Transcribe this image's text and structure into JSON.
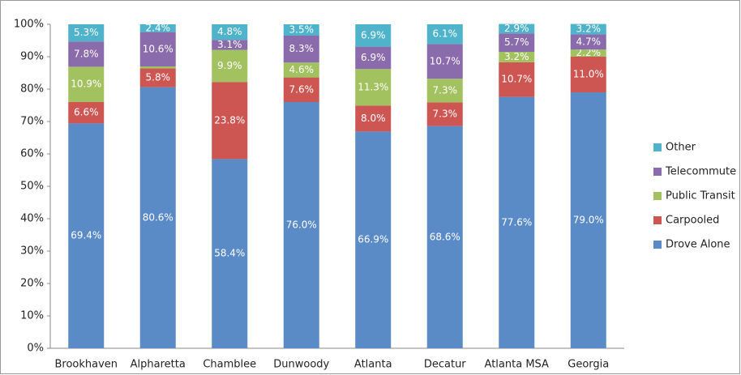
{
  "chart_data": {
    "type": "stacked_bar",
    "categories": [
      "Brookhaven",
      "Alpharetta",
      "Chamblee",
      "Dunwoody",
      "Atlanta",
      "Decatur",
      "Atlanta MSA",
      "Georgia"
    ],
    "series": [
      {
        "name": "Drove Alone",
        "color": "#5b8bc7",
        "values": [
          69.4,
          80.6,
          58.4,
          76.0,
          66.9,
          68.6,
          77.6,
          79.0
        ],
        "value_labels": [
          "69.4%",
          "80.6%",
          "58.4%",
          "76.0%",
          "66.9%",
          "68.6%",
          "77.6%",
          "79.0%"
        ]
      },
      {
        "name": "Carpooled",
        "color": "#cd5653",
        "values": [
          6.6,
          5.8,
          23.8,
          7.6,
          8.0,
          7.3,
          10.7,
          11.0
        ],
        "value_labels": [
          "6.6%",
          "5.8%",
          "23.8%",
          "7.6%",
          "8.0%",
          "7.3%",
          "10.7%",
          "11.0%"
        ]
      },
      {
        "name": "Public Transit",
        "color": "#a2c15f",
        "values": [
          10.9,
          0.6,
          9.9,
          4.6,
          11.3,
          7.3,
          3.2,
          2.2
        ],
        "value_labels": [
          "10.9%",
          null,
          "9.9%",
          "4.6%",
          "11.3%",
          "7.3%",
          "3.2%",
          "2.2%"
        ]
      },
      {
        "name": "Telecommute",
        "color": "#8a6bab",
        "values": [
          7.8,
          10.6,
          3.1,
          8.3,
          6.9,
          10.7,
          5.7,
          4.7
        ],
        "value_labels": [
          "7.8%",
          "10.6%",
          "3.1%",
          "8.3%",
          "6.9%",
          "10.7%",
          "5.7%",
          "4.7%"
        ]
      },
      {
        "name": "Other",
        "color": "#4fb3cc",
        "values": [
          5.3,
          2.4,
          4.8,
          3.5,
          6.9,
          6.1,
          2.9,
          3.2
        ],
        "value_labels": [
          "5.3%",
          "2.4%",
          "4.8%",
          "3.5%",
          "6.9%",
          "6.1%",
          "2.9%",
          "3.2%"
        ]
      }
    ],
    "ylim": [
      0,
      100
    ],
    "yticks": [
      {
        "value": 0,
        "label": "0%"
      },
      {
        "value": 10,
        "label": "10%"
      },
      {
        "value": 20,
        "label": "20%"
      },
      {
        "value": 30,
        "label": "30%"
      },
      {
        "value": 40,
        "label": "40%"
      },
      {
        "value": 50,
        "label": "50%"
      },
      {
        "value": 60,
        "label": "60%"
      },
      {
        "value": 70,
        "label": "70%"
      },
      {
        "value": 80,
        "label": "80%"
      },
      {
        "value": 90,
        "label": "90%"
      },
      {
        "value": 100,
        "label": "100%"
      }
    ],
    "legend": "right"
  }
}
